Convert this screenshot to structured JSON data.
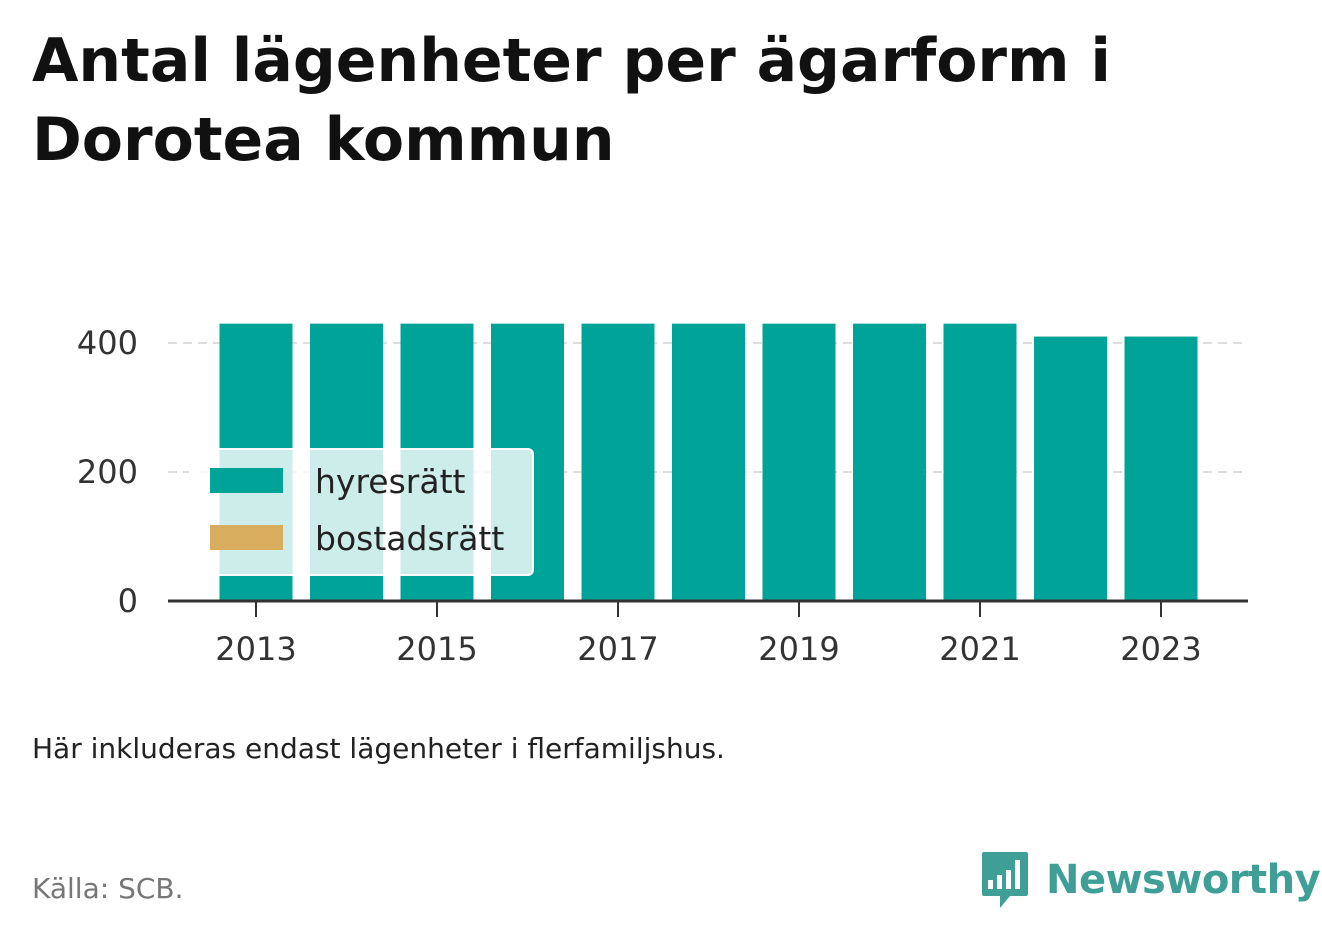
{
  "header": {
    "title": "Antal lägenheter per ägarform i Dorotea kommun"
  },
  "footer": {
    "note": "Här inkluderas endast lägenheter i flerfamiljshus.",
    "source": "Källa: SCB.",
    "brand": "Newsworthy",
    "brand_icon": "bar-chart-speech-bubble-icon"
  },
  "colors": {
    "hyresratt": "#00a397",
    "bostadsratt": "#d8ad5d",
    "brand": "#3f9f96",
    "axis": "#333333",
    "grid": "#dddddd"
  },
  "chart_data": {
    "type": "bar",
    "stacked": true,
    "categories": [
      "2013",
      "2014",
      "2015",
      "2016",
      "2017",
      "2018",
      "2019",
      "2020",
      "2021",
      "2022",
      "2023"
    ],
    "x_tick_labels": [
      "2013",
      "2015",
      "2017",
      "2019",
      "2021",
      "2023"
    ],
    "y_ticks": [
      0,
      200,
      400
    ],
    "ylim": [
      0,
      430
    ],
    "grid": true,
    "legend_position": "bottom-left",
    "series": [
      {
        "name": "hyresrätt",
        "color": "#00a397",
        "values": [
          430,
          430,
          430,
          430,
          430,
          430,
          430,
          430,
          430,
          410,
          410
        ]
      },
      {
        "name": "bostadsrätt",
        "color": "#d8ad5d",
        "values": [
          0,
          0,
          0,
          0,
          0,
          0,
          0,
          0,
          0,
          0,
          0
        ]
      }
    ]
  }
}
